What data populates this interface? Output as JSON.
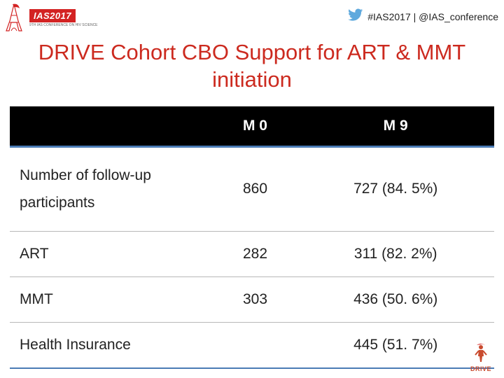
{
  "header": {
    "ias_badge": "IAS2017",
    "ias_sub": "9TH IAS CONFERENCE ON HIV SCIENCE",
    "twitter_text": "#IAS2017 | @IAS_conference"
  },
  "title": "DRIVE Cohort CBO Support for ART & MMT initiation",
  "table": {
    "header_blank": "",
    "header_m0": "M 0",
    "header_m9": "M 9",
    "rows": [
      {
        "label": "Number of follow-up\nparticipants",
        "m0": "860",
        "m9": "727 (84. 5%)",
        "multiline": true
      },
      {
        "label": "ART",
        "m0": "282",
        "m9": "311 (82. 2%)"
      },
      {
        "label": "MMT",
        "m0": "303",
        "m9": "436 (50. 6%)"
      },
      {
        "label": "Health Insurance",
        "m0": "",
        "m9": "445 (51. 7%)"
      }
    ]
  },
  "footer": {
    "logo_text": "DRIVE"
  },
  "colors": {
    "title": "#cc2a1f",
    "header_bg": "#000000",
    "accent_border": "#4a7bb5",
    "row_border": "#b8b8b8",
    "ias_red": "#d32323",
    "twitter": "#5fa9dd",
    "drive_orange": "#c94b2e"
  }
}
